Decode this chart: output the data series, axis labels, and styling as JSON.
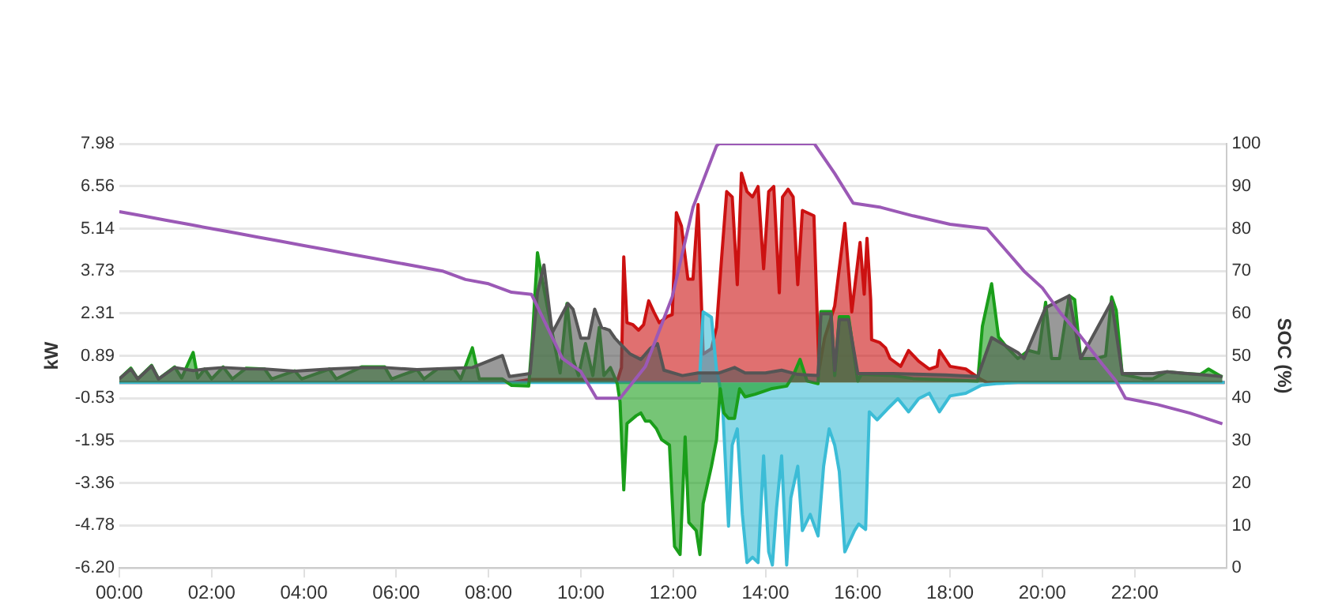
{
  "chart_data": {
    "type": "area",
    "xlabel": null,
    "ylabel": "kW",
    "y2label": "SOC (%)",
    "grid": "y",
    "marker": "none",
    "line_style": "solid",
    "xlim": [
      0,
      24
    ],
    "xticks": [
      {
        "value": 0,
        "label": "00:00"
      },
      {
        "value": 2,
        "label": "02:00"
      },
      {
        "value": 4,
        "label": "04:00"
      },
      {
        "value": 6,
        "label": "06:00"
      },
      {
        "value": 8,
        "label": "08:00"
      },
      {
        "value": 10,
        "label": "10:00"
      },
      {
        "value": 12,
        "label": "12:00"
      },
      {
        "value": 14,
        "label": "14:00"
      },
      {
        "value": 16,
        "label": "16:00"
      },
      {
        "value": 18,
        "label": "18:00"
      },
      {
        "value": 20,
        "label": "20:00"
      },
      {
        "value": 22,
        "label": "22:00"
      }
    ],
    "ylim": [
      -6.2,
      7.98
    ],
    "yticks": [
      {
        "value": -6.2,
        "label": "-6.20"
      },
      -4.78,
      -3.36,
      -1.95,
      -0.53,
      0.89,
      2.31,
      3.73,
      5.14,
      6.56,
      7.98
    ],
    "y2lim": [
      0,
      100
    ],
    "y2ticks": [
      0,
      10,
      20,
      30,
      40,
      50,
      60,
      70,
      80,
      90,
      100
    ],
    "series": [
      {
        "color": "#cc1111",
        "x": [
          0,
          8.5,
          8.9,
          10.8,
          10.88,
          10.93,
          11.0,
          11.13,
          11.25,
          11.36,
          11.47,
          11.58,
          11.7,
          11.87,
          11.98,
          12.07,
          12.18,
          12.32,
          12.43,
          12.54,
          12.65,
          12.83,
          12.94,
          13.05,
          13.16,
          13.28,
          13.39,
          13.48,
          13.6,
          13.72,
          13.84,
          13.96,
          14.07,
          14.18,
          14.3,
          14.37,
          14.49,
          14.6,
          14.7,
          14.8,
          15.05,
          15.16,
          15.28,
          15.5,
          15.72,
          15.87,
          16.05,
          16.14,
          16.2,
          16.28,
          16.3,
          16.47,
          16.6,
          16.7,
          16.93,
          17.1,
          17.32,
          17.55,
          17.72,
          17.77,
          18.0,
          18.34,
          18.68,
          18.8,
          23.95
        ],
        "values": [
          0,
          0,
          0.1,
          0.1,
          0.5,
          4.2,
          2.0,
          1.93,
          1.75,
          1.93,
          2.73,
          2.36,
          2.0,
          2.2,
          2.27,
          5.68,
          5.23,
          3.45,
          3.45,
          5.95,
          0.95,
          1.13,
          1.84,
          4.16,
          6.38,
          6.2,
          3.27,
          7.0,
          6.38,
          6.2,
          6.55,
          3.8,
          6.38,
          6.55,
          3.0,
          6.2,
          6.46,
          6.2,
          3.27,
          5.75,
          5.57,
          0.41,
          1.48,
          2.55,
          5.32,
          2.36,
          4.68,
          2.95,
          4.82,
          2.77,
          1.43,
          1.34,
          1.16,
          0.8,
          0.54,
          1.07,
          0.71,
          0.45,
          0.54,
          1.07,
          0.54,
          0.45,
          0.09,
          0,
          0
        ]
      },
      {
        "color": "#3bbcd6",
        "x": [
          0,
          12.57,
          12.65,
          12.83,
          12.94,
          13.0,
          13.08,
          13.2,
          13.28,
          13.39,
          13.5,
          13.6,
          13.72,
          13.84,
          13.96,
          14.07,
          14.15,
          14.24,
          14.35,
          14.46,
          14.55,
          14.7,
          14.8,
          14.97,
          15.14,
          15.26,
          15.38,
          15.5,
          15.6,
          15.72,
          15.93,
          16.02,
          16.17,
          16.25,
          16.42,
          16.64,
          16.87,
          17.1,
          17.32,
          17.55,
          17.77,
          18.0,
          18.34,
          18.68,
          19.0,
          19.47,
          23.95
        ],
        "values": [
          0,
          0,
          2.36,
          2.18,
          0.41,
          0,
          -1.02,
          -4.8,
          -2.09,
          -1.55,
          -4.41,
          -6.02,
          -5.84,
          -6.02,
          -2.45,
          -5.66,
          -6.1,
          -4.2,
          -2.45,
          -6.1,
          -3.86,
          -2.8,
          -4.95,
          -4.41,
          -5.13,
          -2.8,
          -1.55,
          -2.09,
          -2.98,
          -5.66,
          -4.95,
          -4.73,
          -4.91,
          -0.98,
          -1.25,
          -0.89,
          -0.54,
          -0.98,
          -0.54,
          -0.36,
          -0.98,
          -0.45,
          -0.36,
          -0.09,
          -0.04,
          0,
          0
        ]
      },
      {
        "color": "#1a9e1a",
        "x": [
          0,
          0.25,
          0.4,
          0.7,
          0.85,
          1.2,
          1.35,
          1.6,
          1.7,
          1.85,
          2.0,
          2.25,
          2.45,
          2.75,
          3.15,
          3.3,
          3.8,
          3.95,
          4.55,
          4.7,
          5.25,
          5.75,
          5.9,
          6.45,
          6.6,
          6.9,
          7.25,
          7.4,
          7.65,
          7.8,
          8.3,
          8.5,
          8.87,
          8.95,
          9.06,
          9.2,
          9.38,
          9.55,
          9.7,
          9.83,
          9.95,
          10.1,
          10.26,
          10.4,
          10.5,
          10.64,
          10.79,
          10.85,
          10.93,
          11.0,
          11.2,
          11.3,
          11.4,
          11.5,
          11.64,
          11.75,
          11.92,
          12.03,
          12.15,
          12.26,
          12.34,
          12.5,
          12.58,
          12.65,
          12.83,
          12.94,
          13.02,
          13.1,
          13.2,
          13.33,
          13.44,
          13.56,
          13.78,
          14.12,
          14.46,
          14.6,
          14.75,
          14.9,
          15.14,
          15.2,
          15.42,
          15.5,
          15.6,
          15.8,
          16.0,
          16.08,
          16.76,
          17.2,
          17.9,
          18.6,
          18.7,
          18.9,
          19.05,
          19.24,
          19.47,
          19.7,
          19.92,
          20.07,
          20.2,
          20.37,
          20.58,
          20.7,
          20.83,
          21.16,
          21.37,
          21.5,
          21.6,
          21.73,
          22.18,
          22.4,
          22.7,
          23.08,
          23.42,
          23.6,
          23.9
        ],
        "values": [
          0.12,
          0.48,
          0.12,
          0.57,
          0.12,
          0.52,
          0.15,
          1.0,
          0.15,
          0.45,
          0.12,
          0.52,
          0.12,
          0.48,
          0.45,
          0.12,
          0.39,
          0.12,
          0.45,
          0.12,
          0.52,
          0.52,
          0.12,
          0.43,
          0.12,
          0.46,
          0.46,
          0.12,
          1.16,
          0.12,
          0.12,
          -0.1,
          -0.12,
          1.48,
          4.34,
          3.14,
          1.66,
          0.32,
          2.64,
          0.77,
          0.23,
          1.3,
          0.23,
          1.84,
          0.23,
          0.5,
          -0.04,
          -0.66,
          -3.59,
          -1.37,
          -1.11,
          -1.02,
          -1.29,
          -1.29,
          -1.55,
          -1.91,
          -2.09,
          -5.48,
          -5.75,
          -1.82,
          -4.68,
          -4.95,
          -5.75,
          -4.05,
          -2.8,
          -1.91,
          -0.21,
          -1.02,
          -1.2,
          -1.2,
          -0.21,
          -0.48,
          -0.39,
          -0.21,
          -0.12,
          0.23,
          0.77,
          0.05,
          -0.04,
          2.37,
          2.37,
          0.23,
          2.2,
          2.2,
          0.05,
          0.27,
          0.23,
          0.13,
          0.09,
          0.05,
          1.88,
          3.3,
          1.52,
          1.16,
          0.8,
          1.07,
          0.98,
          2.68,
          0.8,
          0.8,
          2.9,
          2.77,
          0.8,
          0.8,
          0.89,
          2.86,
          2.41,
          0.27,
          0.13,
          0.13,
          0.36,
          0.3,
          0.27,
          0.45,
          0.18
        ]
      },
      {
        "color": "#555555",
        "x": [
          0,
          0.25,
          0.4,
          0.7,
          0.85,
          1.2,
          1.6,
          1.85,
          2.25,
          2.75,
          3.15,
          3.8,
          4.55,
          5.25,
          5.75,
          6.45,
          7.25,
          7.65,
          8.3,
          8.45,
          8.9,
          9.06,
          9.2,
          9.38,
          9.72,
          9.83,
          10.0,
          10.17,
          10.3,
          10.45,
          10.62,
          10.74,
          10.85,
          11.07,
          11.3,
          11.5,
          11.66,
          11.8,
          12.2,
          12.54,
          13.0,
          13.33,
          13.56,
          14.0,
          14.35,
          14.7,
          15.14,
          15.2,
          15.42,
          15.5,
          15.6,
          15.8,
          16.0,
          16.76,
          17.9,
          18.6,
          18.9,
          19.47,
          19.6,
          20.07,
          20.58,
          20.83,
          21.5,
          21.73,
          22.4,
          22.7,
          23.9
        ],
        "values": [
          0.12,
          0.45,
          0.12,
          0.55,
          0.12,
          0.5,
          0.4,
          0.45,
          0.5,
          0.46,
          0.45,
          0.38,
          0.45,
          0.5,
          0.5,
          0.43,
          0.48,
          0.5,
          0.9,
          0.2,
          0.3,
          3.0,
          3.93,
          1.66,
          2.64,
          2.45,
          1.48,
          1.48,
          2.45,
          1.84,
          1.75,
          1.48,
          1.3,
          0.95,
          0.77,
          1.13,
          1.3,
          0.41,
          0.23,
          0.32,
          0.32,
          0.5,
          0.32,
          0.32,
          0.41,
          0.27,
          0.23,
          2.3,
          2.3,
          0.4,
          2.1,
          2.1,
          0.3,
          0.3,
          0.25,
          0.2,
          1.5,
          1.0,
          0.8,
          2.5,
          2.9,
          0.8,
          2.7,
          0.3,
          0.3,
          0.36,
          0.2
        ]
      },
      {
        "type": "line",
        "axis": "y2",
        "color": "#9b59b6",
        "x": [
          0,
          0.5,
          1,
          1.5,
          2,
          2.5,
          3,
          3.5,
          4,
          4.5,
          5,
          5.5,
          6,
          6.5,
          7,
          7.5,
          8,
          8.5,
          8.93,
          9.6,
          10.0,
          10.34,
          10.85,
          11.4,
          11.98,
          12.43,
          12.94,
          13.0,
          15.06,
          15.5,
          15.9,
          16.5,
          17.2,
          18.0,
          18.8,
          19.2,
          19.6,
          20.0,
          20.4,
          20.8,
          21.3,
          21.6,
          21.8,
          22.5,
          23.2,
          23.9
        ],
        "values": [
          84,
          83,
          82,
          81,
          80,
          79,
          78,
          77,
          76,
          75,
          74,
          73,
          72,
          71,
          70,
          68,
          67,
          65,
          64.5,
          49.4,
          46.3,
          40,
          40,
          47.5,
          63.9,
          85,
          99.5,
          100,
          100,
          93,
          86,
          85,
          83,
          81,
          80,
          75,
          70,
          66,
          60,
          55,
          48,
          44,
          40,
          38.5,
          36.5,
          34
        ]
      }
    ]
  }
}
